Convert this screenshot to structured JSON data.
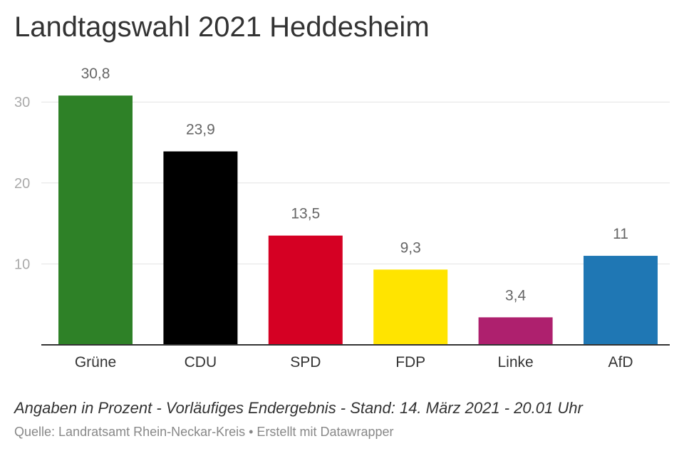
{
  "chart_data": {
    "type": "bar",
    "title": "Landtagswahl 2021 Heddesheim",
    "categories": [
      "Grüne",
      "CDU",
      "SPD",
      "FDP",
      "Linke",
      "AfD"
    ],
    "values": [
      30.8,
      23.9,
      13.5,
      9.3,
      3.4,
      11
    ],
    "value_labels": [
      "30,8",
      "23,9",
      "13,5",
      "9,3",
      "3,4",
      "11"
    ],
    "colors": [
      "#2e8127",
      "#000000",
      "#d50023",
      "#ffe400",
      "#ae206e",
      "#1f77b4"
    ],
    "yticks": [
      10,
      20,
      30
    ],
    "ytick_labels": [
      "10",
      "20",
      "30"
    ],
    "ylim": [
      0,
      32
    ],
    "grid": true,
    "xlabel": "",
    "ylabel": ""
  },
  "notes": "Angaben in Prozent - Vorläufiges Endergebnis - Stand: 14. März 2021 - 20.01 Uhr",
  "footer": {
    "source_text": "Quelle: Landratsamt Rhein-Neckar-Kreis • Erstellt mit Datawrapper"
  }
}
